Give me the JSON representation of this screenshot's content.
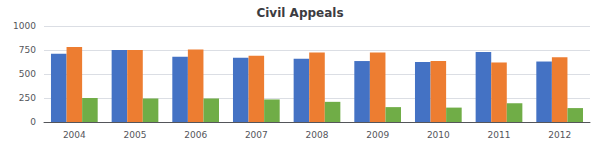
{
  "chart_data": {
    "type": "bar",
    "title": "Civil Appeals",
    "categories": [
      "2004",
      "2005",
      "2006",
      "2007",
      "2008",
      "2009",
      "2010",
      "2011",
      "2012"
    ],
    "series": [
      {
        "color": "#4472C4",
        "values": [
          710,
          750,
          680,
          670,
          660,
          635,
          625,
          730,
          630
        ]
      },
      {
        "color": "#ED7D31",
        "values": [
          780,
          750,
          755,
          690,
          725,
          725,
          635,
          620,
          675
        ]
      },
      {
        "color": "#70AD47",
        "values": [
          250,
          245,
          245,
          235,
          210,
          155,
          150,
          195,
          145
        ]
      }
    ],
    "ylim": [
      0,
      1000
    ],
    "yticks": [
      0,
      250,
      500,
      750,
      1000
    ],
    "grid": true
  }
}
